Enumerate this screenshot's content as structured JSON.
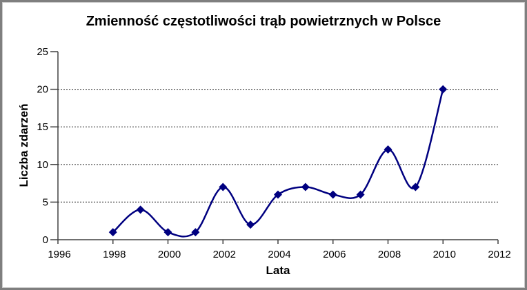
{
  "chart_data": {
    "type": "line",
    "title": "Zmienność częstotliwości trąb powietrznych w Polsce",
    "xlabel": "Lata",
    "ylabel": "Liczba zdarzeń",
    "x": [
      1998,
      1999,
      2000,
      2001,
      2002,
      2003,
      2004,
      2005,
      2006,
      2007,
      2008,
      2009,
      2010
    ],
    "values": [
      1,
      4,
      1,
      1,
      7,
      2,
      6,
      7,
      6,
      6,
      12,
      7,
      20
    ],
    "xlim": [
      1996,
      2012
    ],
    "ylim": [
      0,
      25
    ],
    "x_ticks": [
      1996,
      1998,
      2000,
      2002,
      2004,
      2006,
      2008,
      2010,
      2012
    ],
    "y_ticks": [
      0,
      5,
      10,
      15,
      20,
      25
    ],
    "gridline_values": [
      5,
      10,
      15,
      20
    ],
    "grid": "horizontal-dotted",
    "legend_position": "none",
    "smooth_line": true,
    "marker_shape": "diamond",
    "colors": {
      "line": "#000080",
      "marker": "#000080",
      "axis": "#404040",
      "gridline": "#4d4d4d",
      "text": "#000000",
      "frame_border": "#7f7f7f",
      "background": "#ffffff"
    }
  }
}
